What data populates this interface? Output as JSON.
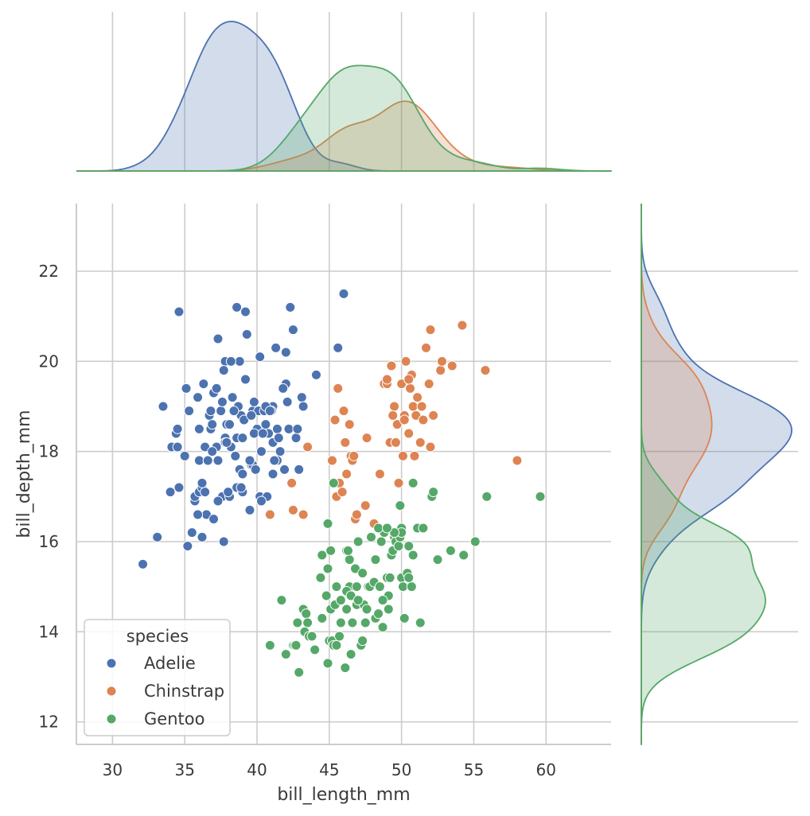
{
  "chart_data": {
    "type": "scatter",
    "xlabel": "bill_length_mm",
    "ylabel": "bill_depth_mm",
    "xlim": [
      27.5,
      64.5
    ],
    "ylim": [
      11.5,
      23.5
    ],
    "x_ticks": [
      "30",
      "35",
      "40",
      "45",
      "50",
      "55",
      "60"
    ],
    "y_ticks": [
      "12",
      "14",
      "16",
      "18",
      "20",
      "22"
    ],
    "grid": true,
    "marginals": "kde",
    "legend": {
      "title": "species",
      "placement": "lower-left",
      "entries": [
        "Adelie",
        "Chinstrap",
        "Gentoo"
      ]
    },
    "series": [
      {
        "name": "Adelie",
        "color": "#4c72b0",
        "points": [
          [
            32.1,
            15.5
          ],
          [
            33.1,
            16.1
          ],
          [
            33.5,
            19.0
          ],
          [
            34.0,
            17.1
          ],
          [
            34.1,
            18.1
          ],
          [
            34.4,
            18.4
          ],
          [
            34.5,
            18.1
          ],
          [
            34.6,
            21.1
          ],
          [
            34.6,
            17.2
          ],
          [
            35.0,
            17.9
          ],
          [
            35.1,
            19.4
          ],
          [
            35.2,
            15.9
          ],
          [
            35.3,
            18.9
          ],
          [
            35.5,
            16.2
          ],
          [
            35.7,
            16.9
          ],
          [
            35.7,
            17.0
          ],
          [
            35.9,
            19.2
          ],
          [
            36.0,
            17.1
          ],
          [
            36.0,
            17.8
          ],
          [
            36.0,
            18.5
          ],
          [
            36.2,
            16.1
          ],
          [
            36.2,
            17.2
          ],
          [
            36.3,
            19.5
          ],
          [
            36.4,
            17.1
          ],
          [
            36.5,
            16.6
          ],
          [
            36.6,
            17.8
          ],
          [
            36.7,
            18.8
          ],
          [
            36.8,
            18.5
          ],
          [
            37.0,
            16.5
          ],
          [
            37.2,
            18.1
          ],
          [
            37.3,
            17.8
          ],
          [
            37.3,
            20.5
          ],
          [
            37.5,
            18.9
          ],
          [
            37.6,
            17.0
          ],
          [
            37.7,
            16.0
          ],
          [
            37.8,
            18.3
          ],
          [
            37.8,
            20.0
          ],
          [
            37.9,
            18.6
          ],
          [
            38.1,
            18.6
          ],
          [
            38.2,
            18.1
          ],
          [
            38.6,
            17.2
          ],
          [
            38.6,
            21.2
          ],
          [
            38.7,
            19.0
          ],
          [
            38.8,
            17.6
          ],
          [
            38.9,
            18.8
          ],
          [
            39.0,
            17.1
          ],
          [
            39.2,
            19.6
          ],
          [
            39.2,
            21.1
          ],
          [
            39.3,
            20.6
          ],
          [
            39.5,
            16.7
          ],
          [
            39.6,
            17.7
          ],
          [
            39.7,
            18.9
          ],
          [
            39.8,
            19.1
          ],
          [
            40.1,
            18.9
          ],
          [
            40.2,
            17.0
          ],
          [
            40.3,
            18.0
          ],
          [
            40.5,
            18.9
          ],
          [
            40.6,
            18.6
          ],
          [
            40.8,
            18.4
          ],
          [
            40.9,
            16.6
          ],
          [
            41.1,
            18.2
          ],
          [
            41.1,
            19.0
          ],
          [
            41.3,
            20.3
          ],
          [
            41.4,
            18.5
          ],
          [
            41.5,
            18.3
          ],
          [
            41.6,
            18.0
          ],
          [
            42.0,
            19.5
          ],
          [
            42.1,
            19.1
          ],
          [
            42.2,
            18.5
          ],
          [
            42.3,
            21.2
          ],
          [
            42.5,
            20.7
          ],
          [
            42.7,
            18.3
          ],
          [
            42.8,
            18.5
          ],
          [
            42.9,
            17.6
          ],
          [
            43.1,
            19.2
          ],
          [
            44.1,
            19.7
          ],
          [
            45.6,
            20.3
          ],
          [
            46.0,
            21.5
          ],
          [
            36.4,
            18.1
          ],
          [
            37.7,
            19.8
          ],
          [
            38.1,
            17.0
          ],
          [
            38.5,
            17.9
          ],
          [
            39.1,
            18.7
          ],
          [
            40.6,
            19.0
          ],
          [
            41.8,
            19.4
          ],
          [
            36.9,
            18.6
          ],
          [
            37.0,
            19.3
          ],
          [
            38.3,
            19.2
          ],
          [
            39.6,
            18.8
          ],
          [
            40.0,
            18.5
          ],
          [
            40.7,
            17.0
          ],
          [
            41.1,
            17.5
          ],
          [
            37.2,
            19.4
          ],
          [
            38.0,
            17.1
          ],
          [
            39.7,
            17.7
          ],
          [
            40.2,
            20.1
          ],
          [
            41.4,
            17.8
          ],
          [
            43.2,
            19.0
          ],
          [
            34.5,
            18.5
          ],
          [
            36.8,
            18.9
          ],
          [
            37.8,
            18.2
          ],
          [
            38.8,
            20.0
          ],
          [
            39.8,
            18.4
          ],
          [
            41.0,
            18.9
          ],
          [
            42.0,
            20.2
          ],
          [
            36.6,
            17.8
          ],
          [
            38.6,
            18.3
          ],
          [
            39.0,
            18.3
          ],
          [
            40.9,
            18.9
          ],
          [
            35.9,
            16.6
          ],
          [
            36.9,
            18.0
          ],
          [
            37.9,
            18.2
          ],
          [
            38.9,
            17.2
          ],
          [
            39.9,
            17.6
          ],
          [
            40.4,
            18.4
          ],
          [
            41.9,
            17.6
          ],
          [
            36.2,
            17.3
          ],
          [
            37.6,
            19.1
          ],
          [
            38.4,
            18.9
          ],
          [
            40.3,
            16.9
          ],
          [
            41.2,
            17.8
          ],
          [
            39.0,
            17.5
          ],
          [
            37.3,
            16.9
          ],
          [
            38.2,
            20.0
          ],
          [
            39.5,
            17.8
          ]
        ]
      },
      {
        "name": "Chinstrap",
        "color": "#dd8452",
        "points": [
          [
            40.9,
            16.6
          ],
          [
            42.4,
            17.3
          ],
          [
            42.5,
            16.7
          ],
          [
            43.2,
            16.6
          ],
          [
            43.5,
            18.1
          ],
          [
            45.2,
            17.8
          ],
          [
            45.4,
            18.7
          ],
          [
            45.5,
            17.0
          ],
          [
            45.6,
            19.4
          ],
          [
            45.7,
            17.3
          ],
          [
            46.0,
            18.9
          ],
          [
            46.1,
            18.2
          ],
          [
            46.2,
            17.5
          ],
          [
            46.4,
            18.6
          ],
          [
            46.5,
            17.9
          ],
          [
            46.6,
            17.8
          ],
          [
            46.7,
            17.9
          ],
          [
            46.8,
            16.5
          ],
          [
            46.9,
            16.6
          ],
          [
            47.5,
            16.8
          ],
          [
            47.6,
            18.3
          ],
          [
            48.1,
            16.4
          ],
          [
            48.5,
            17.5
          ],
          [
            48.8,
            19.5
          ],
          [
            49.0,
            19.5
          ],
          [
            49.2,
            18.2
          ],
          [
            49.3,
            19.9
          ],
          [
            49.5,
            19.0
          ],
          [
            49.6,
            18.2
          ],
          [
            49.7,
            18.6
          ],
          [
            49.8,
            17.3
          ],
          [
            50.0,
            19.5
          ],
          [
            50.1,
            17.9
          ],
          [
            50.2,
            18.8
          ],
          [
            50.3,
            20.0
          ],
          [
            50.5,
            18.4
          ],
          [
            50.6,
            19.4
          ],
          [
            50.7,
            19.7
          ],
          [
            50.8,
            19.0
          ],
          [
            50.9,
            17.9
          ],
          [
            51.0,
            18.8
          ],
          [
            51.3,
            18.2
          ],
          [
            51.4,
            19.0
          ],
          [
            51.5,
            18.7
          ],
          [
            51.7,
            20.3
          ],
          [
            51.9,
            19.5
          ],
          [
            52.0,
            18.1
          ],
          [
            52.0,
            20.7
          ],
          [
            52.2,
            18.8
          ],
          [
            52.7,
            19.8
          ],
          [
            52.8,
            20.0
          ],
          [
            53.5,
            19.9
          ],
          [
            54.2,
            20.8
          ],
          [
            55.8,
            19.8
          ],
          [
            58.0,
            17.8
          ],
          [
            49.0,
            19.6
          ],
          [
            50.5,
            19.6
          ],
          [
            51.1,
            19.2
          ],
          [
            49.7,
            18.6
          ],
          [
            45.9,
            17.1
          ],
          [
            50.2,
            18.7
          ],
          [
            49.4,
            18.8
          ]
        ]
      },
      {
        "name": "Gentoo",
        "color": "#55a868",
        "points": [
          [
            40.9,
            13.7
          ],
          [
            41.7,
            14.7
          ],
          [
            42.0,
            13.5
          ],
          [
            42.5,
            13.7
          ],
          [
            42.6,
            13.7
          ],
          [
            42.7,
            13.7
          ],
          [
            42.8,
            14.2
          ],
          [
            42.9,
            13.1
          ],
          [
            43.2,
            14.5
          ],
          [
            43.3,
            14.0
          ],
          [
            43.4,
            14.4
          ],
          [
            43.5,
            14.2
          ],
          [
            43.6,
            13.9
          ],
          [
            43.8,
            13.9
          ],
          [
            44.0,
            13.6
          ],
          [
            44.4,
            15.2
          ],
          [
            44.5,
            14.3
          ],
          [
            44.9,
            13.3
          ],
          [
            45.0,
            13.8
          ],
          [
            45.1,
            14.5
          ],
          [
            45.2,
            13.8
          ],
          [
            45.3,
            13.7
          ],
          [
            45.4,
            14.6
          ],
          [
            45.5,
            13.7
          ],
          [
            45.7,
            13.9
          ],
          [
            45.8,
            14.2
          ],
          [
            46.1,
            13.2
          ],
          [
            46.2,
            14.5
          ],
          [
            46.4,
            15.0
          ],
          [
            46.5,
            13.5
          ],
          [
            46.6,
            14.2
          ],
          [
            46.8,
            15.4
          ],
          [
            46.9,
            14.6
          ],
          [
            47.2,
            13.7
          ],
          [
            47.3,
            15.3
          ],
          [
            47.4,
            14.6
          ],
          [
            47.5,
            14.2
          ],
          [
            47.6,
            14.5
          ],
          [
            47.7,
            15.0
          ],
          [
            47.8,
            15.0
          ],
          [
            48.1,
            15.1
          ],
          [
            48.2,
            14.3
          ],
          [
            48.4,
            14.4
          ],
          [
            48.5,
            15.0
          ],
          [
            48.6,
            16.0
          ],
          [
            48.7,
            14.1
          ],
          [
            48.8,
            16.2
          ],
          [
            49.0,
            15.2
          ],
          [
            49.1,
            14.5
          ],
          [
            49.2,
            15.2
          ],
          [
            49.3,
            15.7
          ],
          [
            49.4,
            15.8
          ],
          [
            49.5,
            16.1
          ],
          [
            49.6,
            16.0
          ],
          [
            49.8,
            15.9
          ],
          [
            50.0,
            15.2
          ],
          [
            50.1,
            15.0
          ],
          [
            50.2,
            14.3
          ],
          [
            50.4,
            15.3
          ],
          [
            50.5,
            15.9
          ],
          [
            50.7,
            15.0
          ],
          [
            50.8,
            15.7
          ],
          [
            51.1,
            16.3
          ],
          [
            51.3,
            14.2
          ],
          [
            51.5,
            16.3
          ],
          [
            52.1,
            17.0
          ],
          [
            52.5,
            15.6
          ],
          [
            53.4,
            15.8
          ],
          [
            54.3,
            15.7
          ],
          [
            55.1,
            16.0
          ],
          [
            55.9,
            17.0
          ],
          [
            59.6,
            17.0
          ],
          [
            49.9,
            16.1
          ],
          [
            50.5,
            15.2
          ],
          [
            48.4,
            16.3
          ],
          [
            46.2,
            14.9
          ],
          [
            45.5,
            15.0
          ],
          [
            46.4,
            15.6
          ],
          [
            47.3,
            13.8
          ],
          [
            44.9,
            16.4
          ],
          [
            45.1,
            15.8
          ],
          [
            46.2,
            15.8
          ],
          [
            47.0,
            16.0
          ],
          [
            49.1,
            14.8
          ],
          [
            50.0,
            16.3
          ],
          [
            50.8,
            17.3
          ],
          [
            52.2,
            17.1
          ],
          [
            49.9,
            16.8
          ],
          [
            45.3,
            17.3
          ],
          [
            44.5,
            15.7
          ],
          [
            46.9,
            15.0
          ],
          [
            44.8,
            14.8
          ],
          [
            45.8,
            14.7
          ],
          [
            46.5,
            14.8
          ],
          [
            47.0,
            14.7
          ],
          [
            48.7,
            14.7
          ],
          [
            50.0,
            16.2
          ],
          [
            48.2,
            15.6
          ],
          [
            46.3,
            15.8
          ],
          [
            44.9,
            15.4
          ],
          [
            47.9,
            16.1
          ],
          [
            49.5,
            16.2
          ],
          [
            49.0,
            16.3
          ]
        ]
      }
    ]
  }
}
